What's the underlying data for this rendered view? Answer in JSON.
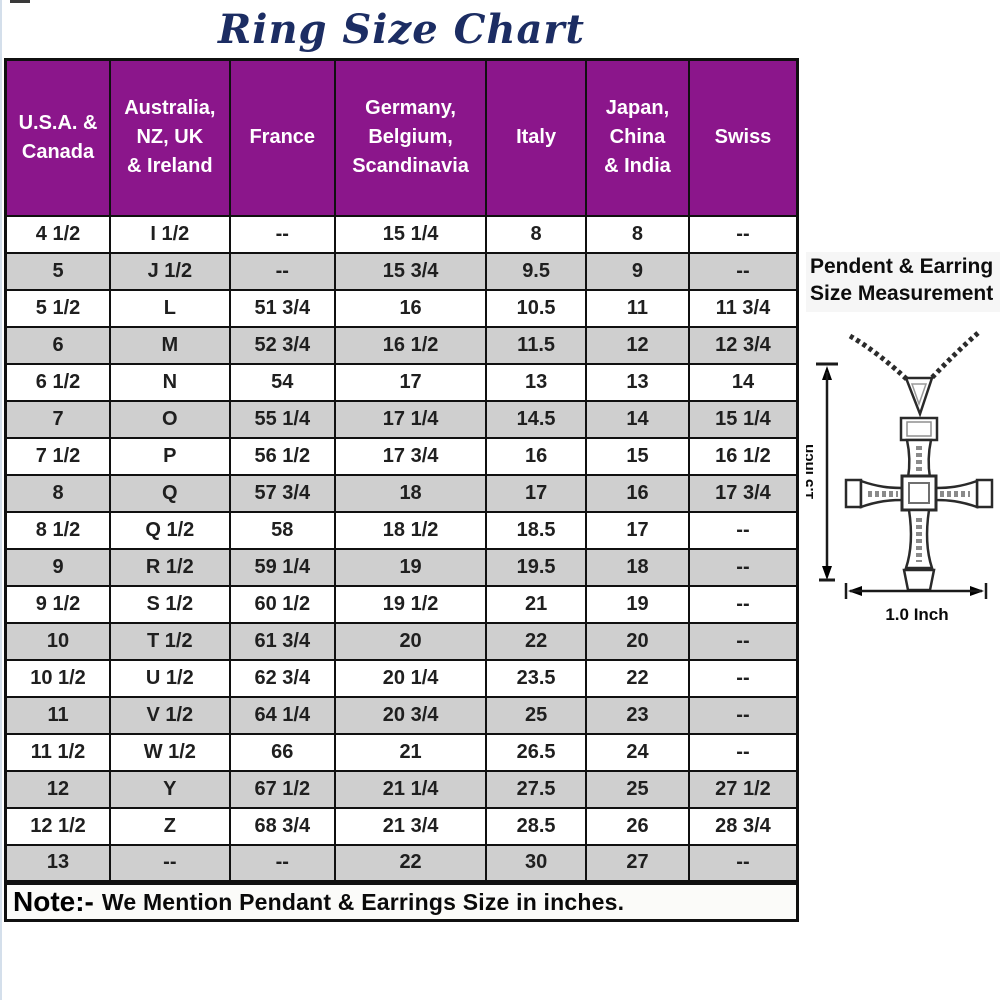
{
  "title": "Ring Size Chart",
  "chart_data": {
    "type": "table",
    "title": "Ring Size Chart",
    "columns": [
      "U.S.A. & Canada",
      "Australia, NZ, UK & Ireland",
      "France",
      "Germany, Belgium, Scandinavia",
      "Italy",
      "Japan, China & India",
      "Swiss"
    ],
    "rows": [
      [
        "4 1/2",
        "I 1/2",
        "--",
        "15 1/4",
        "8",
        "8",
        "--"
      ],
      [
        "5",
        "J 1/2",
        "--",
        "15 3/4",
        "9.5",
        "9",
        "--"
      ],
      [
        "5 1/2",
        "L",
        "51 3/4",
        "16",
        "10.5",
        "11",
        "11 3/4"
      ],
      [
        "6",
        "M",
        "52 3/4",
        "16 1/2",
        "11.5",
        "12",
        "12 3/4"
      ],
      [
        "6 1/2",
        "N",
        "54",
        "17",
        "13",
        "13",
        "14"
      ],
      [
        "7",
        "O",
        "55 1/4",
        "17 1/4",
        "14.5",
        "14",
        "15 1/4"
      ],
      [
        "7 1/2",
        "P",
        "56 1/2",
        "17 3/4",
        "16",
        "15",
        "16 1/2"
      ],
      [
        "8",
        "Q",
        "57 3/4",
        "18",
        "17",
        "16",
        "17 3/4"
      ],
      [
        "8 1/2",
        "Q 1/2",
        "58",
        "18 1/2",
        "18.5",
        "17",
        "--"
      ],
      [
        "9",
        "R 1/2",
        "59 1/4",
        "19",
        "19.5",
        "18",
        "--"
      ],
      [
        "9 1/2",
        "S 1/2",
        "60 1/2",
        "19 1/2",
        "21",
        "19",
        "--"
      ],
      [
        "10",
        "T 1/2",
        "61 3/4",
        "20",
        "22",
        "20",
        "--"
      ],
      [
        "10 1/2",
        "U 1/2",
        "62 3/4",
        "20 1/4",
        "23.5",
        "22",
        "--"
      ],
      [
        "11",
        "V 1/2",
        "64 1/4",
        "20 3/4",
        "25",
        "23",
        "--"
      ],
      [
        "11 1/2",
        "W 1/2",
        "66",
        "21",
        "26.5",
        "24",
        "--"
      ],
      [
        "12",
        "Y",
        "67 1/2",
        "21 1/4",
        "27.5",
        "25",
        "27 1/2"
      ],
      [
        "12 1/2",
        "Z",
        "68 3/4",
        "21 3/4",
        "28.5",
        "26",
        "28 3/4"
      ],
      [
        "13",
        "--",
        "--",
        "22",
        "30",
        "27",
        "--"
      ]
    ]
  },
  "table": {
    "header_lines": [
      "U.S.A. &\nCanada",
      "Australia,\nNZ, UK\n& Ireland",
      "France",
      "Germany,\nBelgium,\nScandinavia",
      "Italy",
      "Japan,\nChina\n& India",
      "Swiss"
    ]
  },
  "note": {
    "label": "Note:-",
    "text": "We Mention Pendant & Earrings Size in inches."
  },
  "side_panel": {
    "heading_line1": "Pendent & Earring",
    "heading_line2": "Size Measurement",
    "height_label": "1.5 Inch",
    "width_label": "1.0 Inch"
  },
  "colors": {
    "header_bg": "#8b168b",
    "header_text": "#ffffff",
    "stripe_bg": "#cfcfcf",
    "title_color": "#1c2d63",
    "border": "#101010"
  }
}
